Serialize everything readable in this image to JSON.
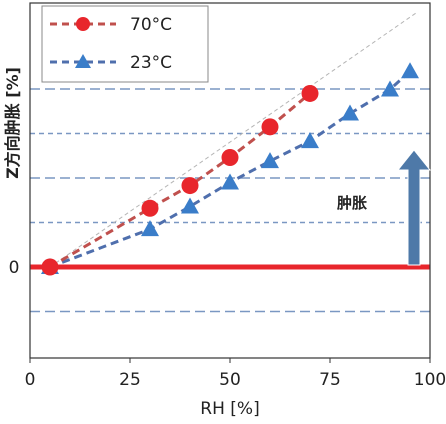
{
  "chart_data": {
    "type": "line",
    "xlabel": "RH [%]",
    "ylabel": "Z方向肿胀 [%]",
    "xlim": [
      0,
      100
    ],
    "x_ticks": [
      0,
      25,
      50,
      75,
      100
    ],
    "y_ticks_labeled": [
      {
        "value": 0,
        "label": "0"
      }
    ],
    "grid": "horizontal dashed",
    "legend_position": "top-left",
    "annotation": "肿胀",
    "series": [
      {
        "name": "70°C",
        "color": "#c0504d",
        "marker": "circle",
        "points": [
          [
            5,
            0.0
          ],
          [
            30,
            1.32
          ],
          [
            40,
            1.83
          ],
          [
            50,
            2.46
          ],
          [
            60,
            3.15
          ],
          [
            70,
            3.9
          ]
        ]
      },
      {
        "name": "23°C",
        "color": "#4f6fad",
        "marker": "triangle",
        "points": [
          [
            5,
            0.0
          ],
          [
            30,
            0.85
          ],
          [
            40,
            1.36
          ],
          [
            50,
            1.9
          ],
          [
            60,
            2.38
          ],
          [
            70,
            2.83
          ],
          [
            80,
            3.45
          ],
          [
            90,
            3.99
          ],
          [
            95,
            4.4
          ]
        ]
      }
    ]
  }
}
